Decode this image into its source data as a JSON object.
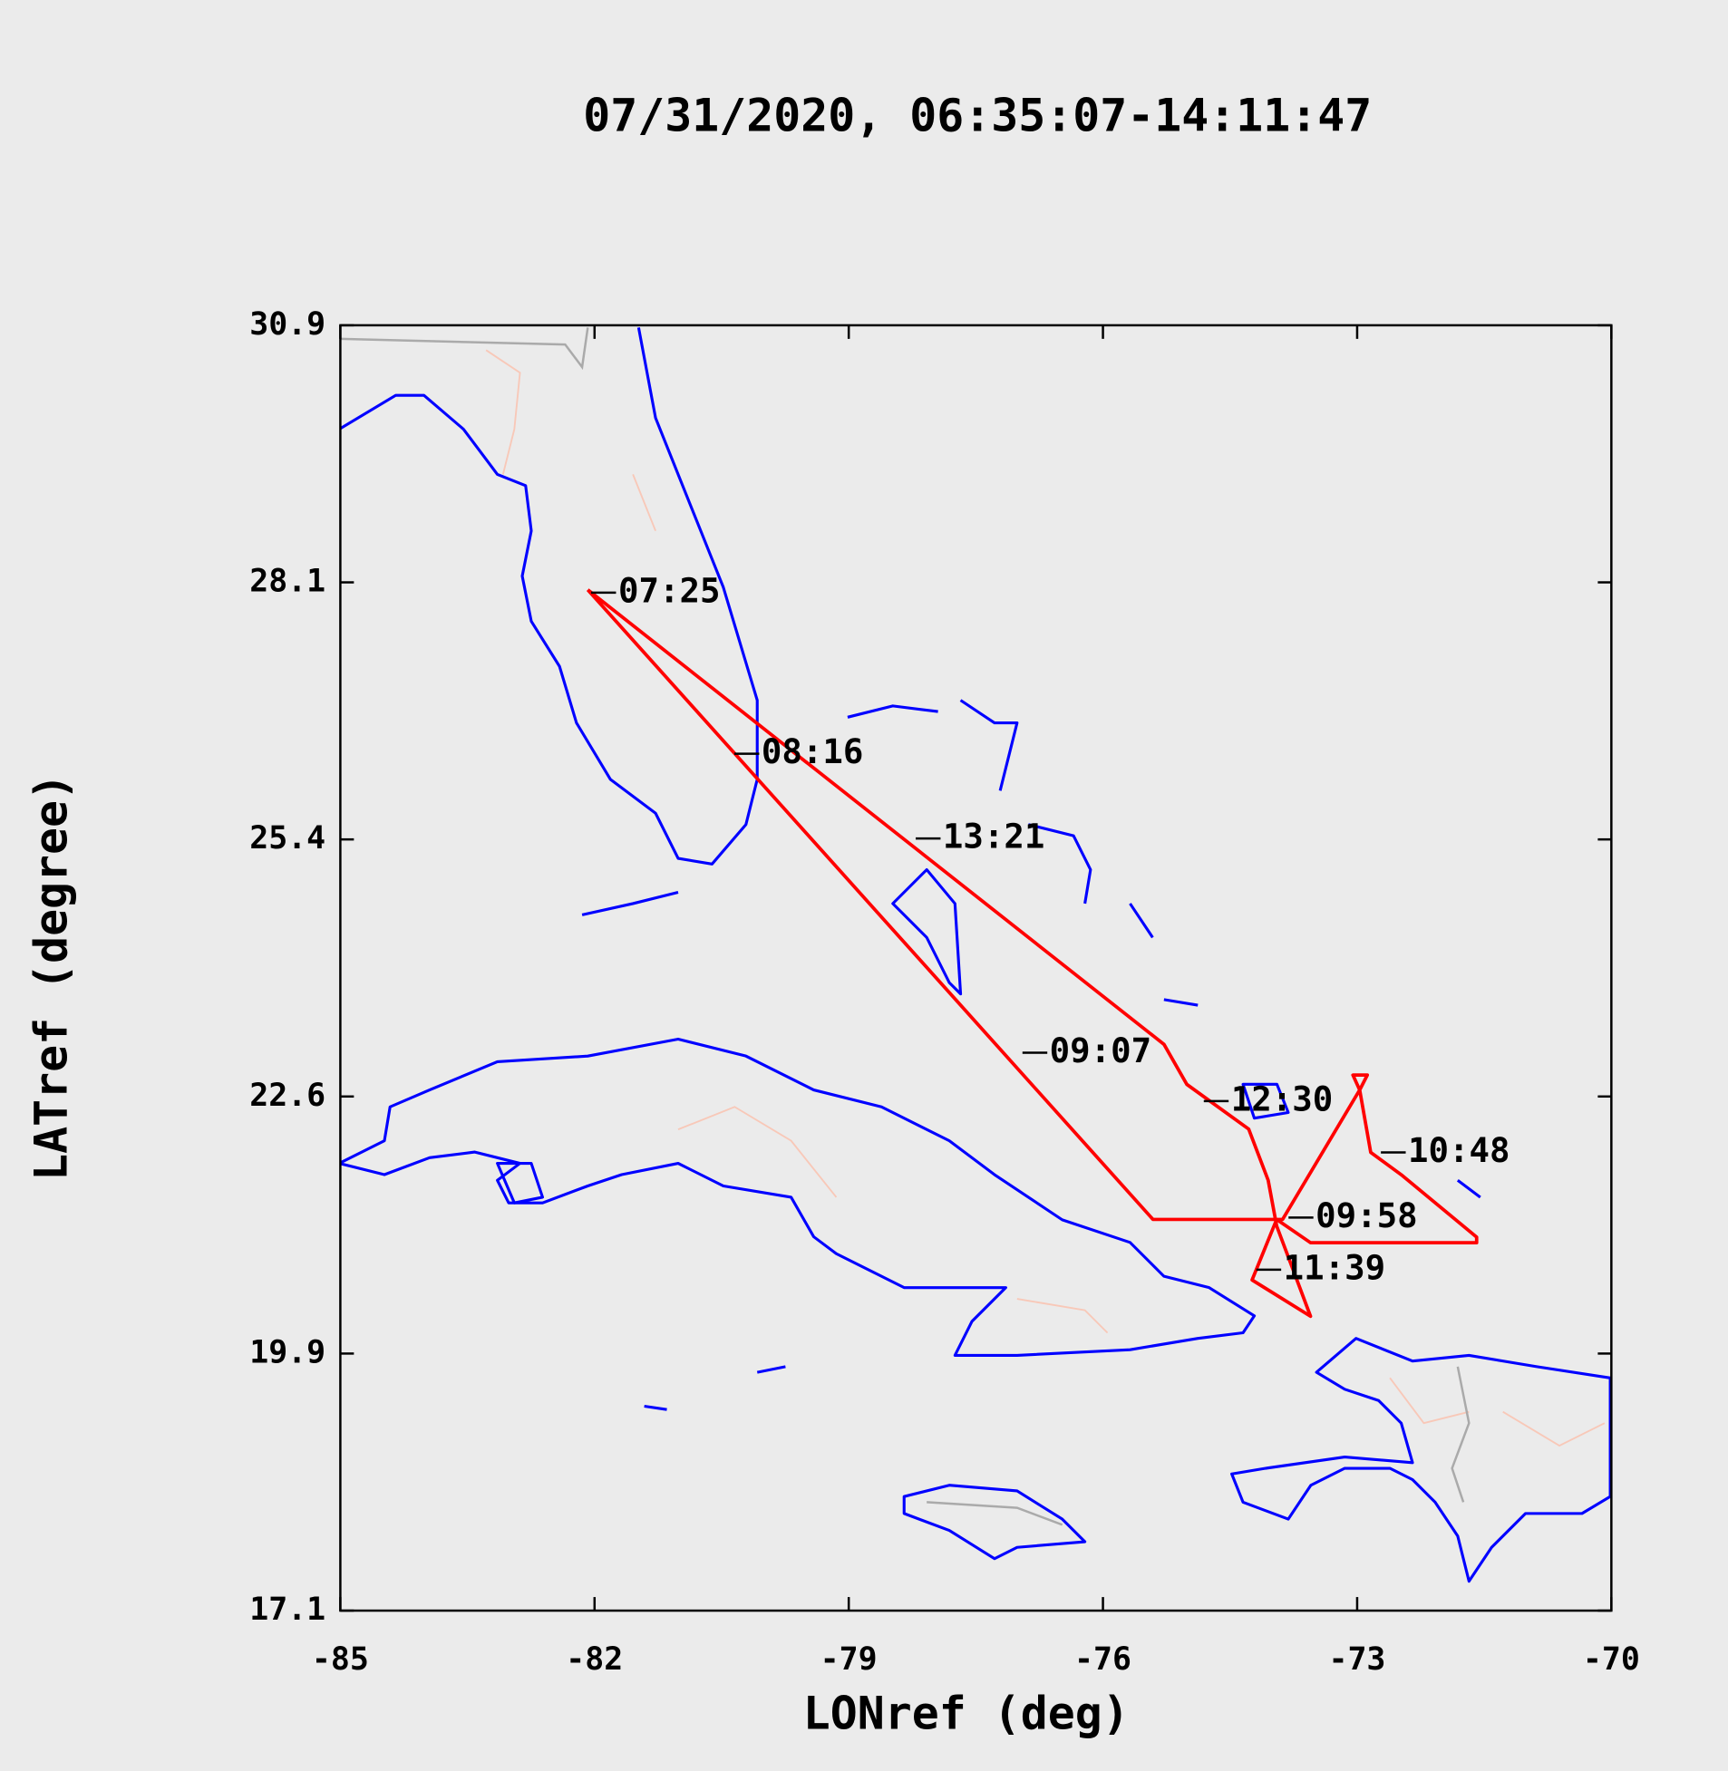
{
  "chart_data": {
    "type": "line",
    "title": "07/31/2020, 06:35:07-14:11:47",
    "x_label": "LONref (deg)",
    "y_label": "LATref (degree)",
    "xlim": [
      -85,
      -70
    ],
    "xticks": [
      -85,
      -82,
      -79,
      -76,
      -73,
      -70
    ],
    "ylim": [
      17.1,
      30.9
    ],
    "yticks": [
      17.1,
      {
        "value": 19.86,
        "label": "19.9"
      },
      {
        "value": 22.62,
        "label": "22.6"
      },
      {
        "value": 25.38,
        "label": "25.4"
      },
      {
        "value": 28.14,
        "label": "28.1"
      },
      30.9
    ],
    "color": "#ff0000",
    "x": [
      -82.08,
      -75.41,
      -73.88,
      -72.97,
      -73.05,
      -72.88,
      -72.97,
      -72.84,
      -72.48,
      -71.59,
      -71.59,
      -73.55,
      -73.95,
      -74.24,
      -73.55,
      -73.95,
      -74.05,
      -74.28,
      -75.01,
      -75.28,
      -82.08
    ],
    "values": [
      28.06,
      21.3,
      21.3,
      22.69,
      22.85,
      22.85,
      22.69,
      22.02,
      21.78,
      21.11,
      21.05,
      21.05,
      21.3,
      20.65,
      20.26,
      21.23,
      21.72,
      22.27,
      22.75,
      23.18,
      28.06
    ],
    "annotations": [
      {
        "text": "07:25",
        "x": -82.04,
        "y": 28.03
      },
      {
        "text": "08:16",
        "x": -80.35,
        "y": 26.3
      },
      {
        "text": "09:07",
        "x": -76.95,
        "y": 23.09
      },
      {
        "text": "09:58",
        "x": -73.81,
        "y": 21.32
      },
      {
        "text": "10:48",
        "x": -72.72,
        "y": 22.02
      },
      {
        "text": "11:39",
        "x": -74.19,
        "y": 20.76
      },
      {
        "text": "12:30",
        "x": -74.81,
        "y": 22.57
      },
      {
        "text": "13:21",
        "x": -78.21,
        "y": 25.39
      }
    ]
  }
}
